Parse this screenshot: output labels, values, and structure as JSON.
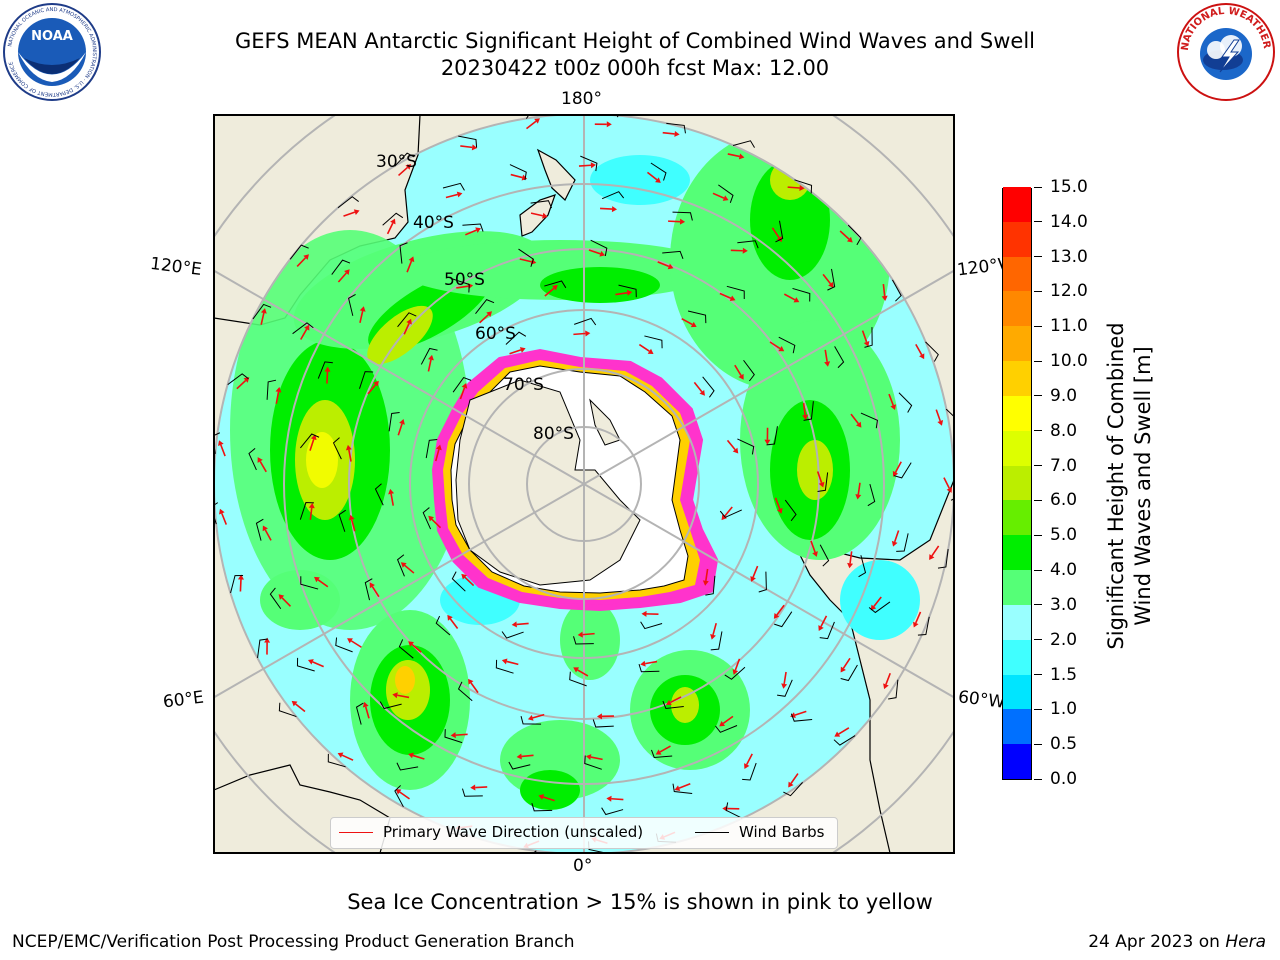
{
  "header": {
    "title_line1": "GEFS MEAN Antarctic Significant Height of Combined Wind Waves and Swell",
    "title_line2": "20230422 t00z 000h fcst   Max: 12.00"
  },
  "logos": {
    "left": {
      "name": "NOAA",
      "text": "NOAA",
      "ring_text": "NATIONAL OCEANIC AND ATMOSPHERIC ADMINISTRATION · U.S. DEPARTMENT OF COMMERCE"
    },
    "right": {
      "name": "National Weather Service",
      "ring_text": "NATIONAL WEATHER SERVICE"
    }
  },
  "map": {
    "projection": "south-polar-stereographic",
    "longitude_labels": {
      "top": "180°",
      "bottom": "0°",
      "left_upper": "120°E",
      "left_lower": "60°E",
      "right_upper": "120°W",
      "right_lower": "60°W"
    },
    "latitude_labels": [
      "30°S",
      "40°S",
      "50°S",
      "60°S",
      "70°S",
      "80°S"
    ],
    "colors": {
      "land": "#efecdc",
      "ice_sheet": "#ffffff",
      "sea_ice_edge": "#ff33cc",
      "arrows": "#ee1111",
      "barbs": "#000000",
      "grid": "#b4b4b4"
    }
  },
  "legend": {
    "primary_wave_label": "Primary Wave Direction (unscaled)",
    "primary_wave_color": "#ee1111",
    "wind_barbs_label": "Wind Barbs",
    "wind_barbs_color": "#000000"
  },
  "colorbar": {
    "label_line1": "Significant Height of Combined",
    "label_line2": "Wind Waves and Swell [m]",
    "ticks": [
      "0.0",
      "0.5",
      "1.0",
      "1.5",
      "2.0",
      "3.0",
      "4.0",
      "5.0",
      "6.0",
      "7.0",
      "8.0",
      "9.0",
      "10.0",
      "11.0",
      "12.0",
      "13.0",
      "14.0",
      "15.0"
    ],
    "colors": [
      "#0000ff",
      "#0070ff",
      "#00e5ff",
      "#40ffff",
      "#99ffff",
      "#55ff77",
      "#00ee00",
      "#66ee00",
      "#bbee00",
      "#ddff00",
      "#ffff00",
      "#ffd000",
      "#ffaa00",
      "#ff8800",
      "#ff6600",
      "#ff3300",
      "#ff0000"
    ]
  },
  "note": "Sea Ice Concentration > 15% is shown in pink to yellow",
  "footer": {
    "left": "NCEP/EMC/Verification Post Processing Product Generation Branch",
    "date": "24 Apr 2023 on",
    "machine": "Hera"
  }
}
